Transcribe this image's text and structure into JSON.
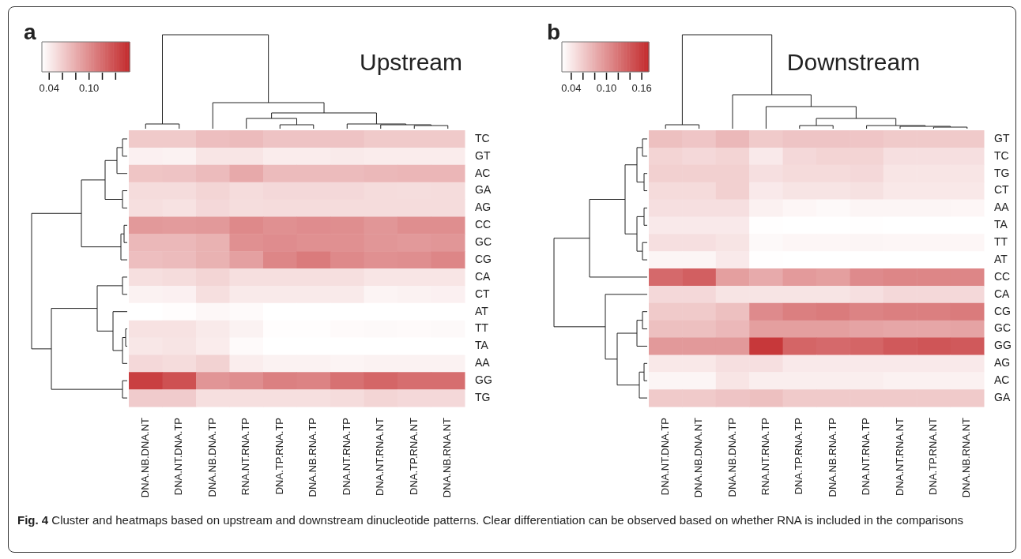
{
  "chart_data": [
    {
      "type": "heatmap",
      "title": "Upstream",
      "annotations": [
        "a"
      ],
      "categories": [
        "DNA.NB.DNA.NT",
        "DNA.NT.DNA.TP",
        "DNA.NB.DNA.TP",
        "RNA.NT.RNA.TP",
        "DNA.TP.RNA.TP",
        "DNA.NB.RNA.TP",
        "DNA.NT.RNA.TP",
        "DNA.NT.RNA.NT",
        "DNA.TP.RNA.NT",
        "DNA.NB.RNA.NT"
      ],
      "y_categories": [
        "TC",
        "GT",
        "AC",
        "GA",
        "AG",
        "CC",
        "GC",
        "CG",
        "CA",
        "CT",
        "AT",
        "TT",
        "TA",
        "AA",
        "GG",
        "TG"
      ],
      "cells": [
        [
          0.062,
          0.062,
          0.069,
          0.071,
          0.066,
          0.066,
          0.066,
          0.062,
          0.062,
          0.062
        ],
        [
          0.038,
          0.037,
          0.045,
          0.045,
          0.041,
          0.041,
          0.042,
          0.041,
          0.041,
          0.041
        ],
        [
          0.065,
          0.066,
          0.071,
          0.082,
          0.071,
          0.071,
          0.071,
          0.073,
          0.074,
          0.074
        ],
        [
          0.051,
          0.051,
          0.055,
          0.051,
          0.053,
          0.053,
          0.053,
          0.051,
          0.05,
          0.051
        ],
        [
          0.049,
          0.047,
          0.053,
          0.05,
          0.051,
          0.051,
          0.051,
          0.051,
          0.051,
          0.051
        ],
        [
          0.092,
          0.091,
          0.092,
          0.102,
          0.098,
          0.1,
          0.099,
          0.094,
          0.099,
          0.099
        ],
        [
          0.073,
          0.073,
          0.077,
          0.098,
          0.1,
          0.098,
          0.098,
          0.094,
          0.092,
          0.094
        ],
        [
          0.069,
          0.071,
          0.077,
          0.088,
          0.104,
          0.111,
          0.102,
          0.098,
          0.099,
          0.104
        ],
        [
          0.049,
          0.051,
          0.055,
          0.049,
          0.049,
          0.049,
          0.049,
          0.045,
          0.045,
          0.045
        ],
        [
          0.037,
          0.038,
          0.049,
          0.042,
          0.042,
          0.042,
          0.042,
          0.036,
          0.037,
          0.038
        ],
        [
          0.029,
          0.03,
          0.034,
          0.032,
          0.029,
          0.029,
          0.029,
          0.029,
          0.029,
          0.029
        ],
        [
          0.047,
          0.047,
          0.042,
          0.037,
          0.03,
          0.03,
          0.032,
          0.033,
          0.032,
          0.033
        ],
        [
          0.044,
          0.046,
          0.041,
          0.032,
          0.029,
          0.029,
          0.029,
          0.029,
          0.029,
          0.029
        ],
        [
          0.053,
          0.051,
          0.057,
          0.04,
          0.037,
          0.037,
          0.036,
          0.037,
          0.037,
          0.037
        ],
        [
          0.148,
          0.137,
          0.095,
          0.099,
          0.108,
          0.106,
          0.117,
          0.124,
          0.119,
          0.119
        ],
        [
          0.061,
          0.061,
          0.049,
          0.049,
          0.049,
          0.049,
          0.051,
          0.055,
          0.053,
          0.053
        ]
      ],
      "clim": [
        0.029,
        0.161
      ],
      "cticks": [
        {
          "value": 0.04,
          "label": "0.04"
        },
        {
          "value": 0.06,
          "label": null
        },
        {
          "value": 0.08,
          "label": null
        },
        {
          "value": 0.1,
          "label": "0.10"
        },
        {
          "value": 0.12,
          "label": null
        },
        {
          "value": 0.14,
          "label": null
        }
      ],
      "colors": [
        "#ffffff",
        "#c32a2c"
      ]
    },
    {
      "type": "heatmap",
      "title": "Downstream",
      "annotations": [
        "b"
      ],
      "categories": [
        "DNA.NT.DNA.TP",
        "DNA.NB.DNA.NT",
        "DNA.NB.DNA.TP",
        "RNA.NT.RNA.TP",
        "DNA.TP.RNA.TP",
        "DNA.NB.RNA.TP",
        "DNA.NT.RNA.TP",
        "DNA.NT.RNA.NT",
        "DNA.TP.RNA.NT",
        "DNA.NB.RNA.NT"
      ],
      "y_categories": [
        "GT",
        "TC",
        "TG",
        "CT",
        "AA",
        "TA",
        "TT",
        "AT",
        "CC",
        "CA",
        "CG",
        "GC",
        "GG",
        "AG",
        "AC",
        "GA"
      ],
      "cells": [
        [
          0.068,
          0.064,
          0.073,
          0.061,
          0.065,
          0.065,
          0.064,
          0.061,
          0.061,
          0.061
        ],
        [
          0.054,
          0.051,
          0.054,
          0.039,
          0.051,
          0.054,
          0.054,
          0.046,
          0.046,
          0.046
        ],
        [
          0.057,
          0.057,
          0.057,
          0.046,
          0.049,
          0.049,
          0.051,
          0.042,
          0.042,
          0.042
        ],
        [
          0.049,
          0.049,
          0.057,
          0.039,
          0.043,
          0.043,
          0.045,
          0.04,
          0.04,
          0.04
        ],
        [
          0.046,
          0.046,
          0.046,
          0.034,
          0.03,
          0.028,
          0.031,
          0.031,
          0.031,
          0.03
        ],
        [
          0.039,
          0.039,
          0.039,
          0.025,
          0.024,
          0.024,
          0.025,
          0.024,
          0.024,
          0.024
        ],
        [
          0.046,
          0.046,
          0.043,
          0.028,
          0.03,
          0.03,
          0.031,
          0.03,
          0.03,
          0.03
        ],
        [
          0.031,
          0.031,
          0.039,
          0.025,
          0.024,
          0.024,
          0.024,
          0.024,
          0.024,
          0.024
        ],
        [
          0.128,
          0.135,
          0.091,
          0.083,
          0.094,
          0.091,
          0.105,
          0.108,
          0.108,
          0.108
        ],
        [
          0.051,
          0.051,
          0.043,
          0.043,
          0.043,
          0.043,
          0.046,
          0.051,
          0.051,
          0.051
        ],
        [
          0.061,
          0.061,
          0.068,
          0.105,
          0.113,
          0.116,
          0.11,
          0.113,
          0.113,
          0.116
        ],
        [
          0.068,
          0.068,
          0.073,
          0.091,
          0.091,
          0.091,
          0.088,
          0.086,
          0.086,
          0.088
        ],
        [
          0.095,
          0.095,
          0.095,
          0.162,
          0.131,
          0.128,
          0.131,
          0.139,
          0.142,
          0.139
        ],
        [
          0.04,
          0.04,
          0.046,
          0.046,
          0.039,
          0.039,
          0.039,
          0.039,
          0.039,
          0.039
        ],
        [
          0.031,
          0.031,
          0.042,
          0.036,
          0.036,
          0.036,
          0.036,
          0.034,
          0.034,
          0.034
        ],
        [
          0.061,
          0.061,
          0.065,
          0.068,
          0.061,
          0.061,
          0.061,
          0.061,
          0.061,
          0.061
        ]
      ],
      "clim": [
        0.024,
        0.172
      ],
      "cticks": [
        {
          "value": 0.04,
          "label": "0.04"
        },
        {
          "value": 0.06,
          "label": null
        },
        {
          "value": 0.08,
          "label": null
        },
        {
          "value": 0.1,
          "label": "0.10"
        },
        {
          "value": 0.12,
          "label": null
        },
        {
          "value": 0.14,
          "label": null
        },
        {
          "value": 0.16,
          "label": "0.16"
        }
      ],
      "colors": [
        "#ffffff",
        "#c32a2c"
      ]
    },
    {
      "type": "other",
      "annotations": [
        "Fig. 4",
        "Cluster and heatmaps based on upstream and downstream dinucleotide patterns. Clear differentiation can be observed based on whether RNA is included in the comparisons"
      ]
    }
  ]
}
